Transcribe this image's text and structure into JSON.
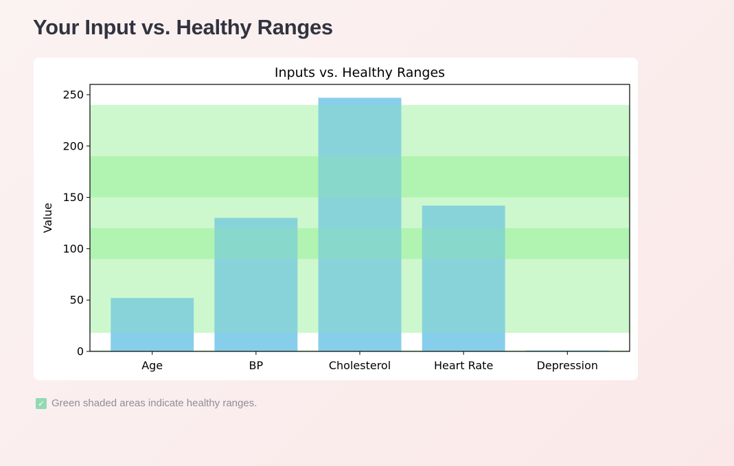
{
  "page": {
    "title": "Your Input vs. Healthy Ranges",
    "caption_icon": "check-mark-icon",
    "caption_icon_glyph": "✓",
    "caption": "Green shaded areas indicate healthy ranges."
  },
  "chart_data": {
    "type": "bar",
    "title": "Inputs vs. Healthy Ranges",
    "xlabel": "",
    "ylabel": "Value",
    "categories": [
      "Age",
      "BP",
      "Cholesterol",
      "Heart Rate",
      "Depression"
    ],
    "values": [
      52,
      130,
      247,
      142,
      1
    ],
    "ylim": [
      0,
      260
    ],
    "yticks": [
      0,
      50,
      100,
      150,
      200,
      250
    ],
    "healthy_ranges": [
      {
        "category": "Age",
        "low": 18,
        "high": 60
      },
      {
        "category": "BP",
        "low": 90,
        "high": 120
      },
      {
        "category": "Cholesterol",
        "low": 150,
        "high": 240
      },
      {
        "category": "Heart Rate",
        "low": 60,
        "high": 190
      },
      {
        "category": "Depression",
        "low": 0,
        "high": 1
      }
    ],
    "colors": {
      "bar": "#87ceeb",
      "healthy_band": "#90ee90",
      "healthy_band_opacity": 0.32,
      "axes": "#000000"
    },
    "grid": false
  }
}
